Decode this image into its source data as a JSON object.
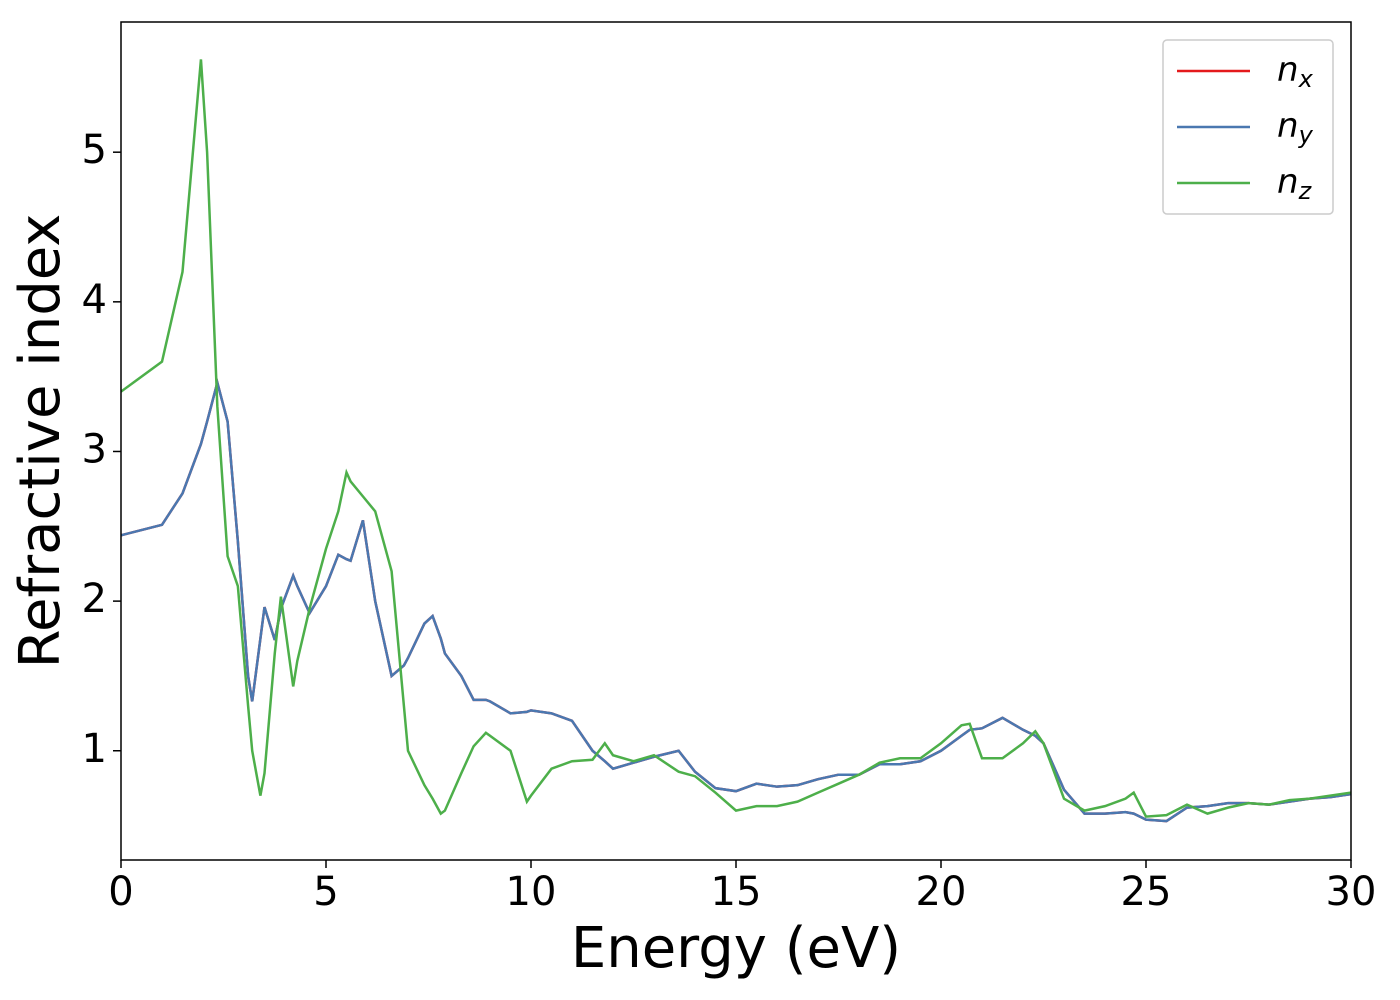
{
  "chart_data": {
    "type": "line",
    "xlabel": "Energy (eV)",
    "ylabel": "Refractive index",
    "x": [
      0,
      1,
      1.5,
      1.95,
      2.1,
      2.35,
      2.6,
      2.85,
      3.1,
      3.2,
      3.4,
      3.5,
      3.75,
      3.9,
      4.2,
      4.3,
      4.6,
      5.0,
      5.3,
      5.5,
      5.6,
      5.9,
      6.2,
      6.6,
      6.9,
      7.0,
      7.4,
      7.6,
      7.8,
      7.9,
      8.3,
      8.6,
      8.9,
      9.0,
      9.5,
      9.9,
      10.0,
      10.5,
      11.0,
      11.5,
      11.8,
      12.0,
      12.5,
      13.0,
      13.6,
      14.0,
      14.5,
      15.0,
      15.5,
      16.0,
      16.5,
      17,
      17.5,
      18,
      18.5,
      19,
      19.5,
      20,
      20.5,
      20.7,
      21,
      21.5,
      22,
      22.3,
      22.5,
      23,
      23.5,
      24,
      24.5,
      24.7,
      25,
      25.5,
      26,
      26.5,
      27,
      27.5,
      28,
      28.5,
      29,
      29.5,
      30
    ],
    "series": [
      {
        "name": "n_x",
        "color": "#e41a1c",
        "values": [
          2.44,
          2.51,
          2.72,
          3.05,
          3.2,
          3.46,
          3.2,
          2.4,
          1.5,
          1.33,
          1.75,
          1.96,
          1.74,
          1.95,
          2.17,
          2.1,
          1.92,
          2.1,
          2.31,
          2.28,
          2.27,
          2.54,
          2.0,
          1.5,
          1.57,
          1.62,
          1.85,
          1.9,
          1.75,
          1.65,
          1.5,
          1.34,
          1.34,
          1.33,
          1.25,
          1.26,
          1.27,
          1.25,
          1.2,
          1.0,
          0.93,
          0.88,
          0.92,
          0.96,
          1.0,
          0.86,
          0.75,
          0.73,
          0.78,
          0.76,
          0.77,
          0.81,
          0.84,
          0.84,
          0.91,
          0.91,
          0.93,
          1.0,
          1.1,
          1.14,
          1.15,
          1.22,
          1.14,
          1.1,
          1.05,
          0.74,
          0.58,
          0.58,
          0.59,
          0.58,
          0.54,
          0.53,
          0.62,
          0.63,
          0.65,
          0.65,
          0.64,
          0.66,
          0.68,
          0.69,
          0.71
        ]
      },
      {
        "name": "n_y",
        "color": "#4a78b0",
        "values": [
          2.44,
          2.51,
          2.72,
          3.05,
          3.2,
          3.46,
          3.2,
          2.4,
          1.5,
          1.33,
          1.75,
          1.96,
          1.74,
          1.95,
          2.17,
          2.1,
          1.92,
          2.1,
          2.31,
          2.28,
          2.27,
          2.54,
          2.0,
          1.5,
          1.57,
          1.62,
          1.85,
          1.9,
          1.75,
          1.65,
          1.5,
          1.34,
          1.34,
          1.33,
          1.25,
          1.26,
          1.27,
          1.25,
          1.2,
          1.0,
          0.93,
          0.88,
          0.92,
          0.96,
          1.0,
          0.86,
          0.75,
          0.73,
          0.78,
          0.76,
          0.77,
          0.81,
          0.84,
          0.84,
          0.91,
          0.91,
          0.93,
          1.0,
          1.1,
          1.14,
          1.15,
          1.22,
          1.14,
          1.1,
          1.05,
          0.74,
          0.58,
          0.58,
          0.59,
          0.58,
          0.54,
          0.53,
          0.62,
          0.63,
          0.65,
          0.65,
          0.64,
          0.66,
          0.68,
          0.69,
          0.71
        ]
      },
      {
        "name": "n_z",
        "color": "#4daf4a",
        "values": [
          3.4,
          3.6,
          4.2,
          5.62,
          5.0,
          3.3,
          2.3,
          2.1,
          1.3,
          1.0,
          0.7,
          0.85,
          1.65,
          2.03,
          1.43,
          1.6,
          1.95,
          2.35,
          2.6,
          2.86,
          2.8,
          2.7,
          2.6,
          2.2,
          1.3,
          1.0,
          0.77,
          0.68,
          0.58,
          0.6,
          0.85,
          1.03,
          1.12,
          1.1,
          1.0,
          0.66,
          0.7,
          0.88,
          0.93,
          0.94,
          1.05,
          0.97,
          0.93,
          0.97,
          0.86,
          0.83,
          0.72,
          0.6,
          0.63,
          0.63,
          0.66,
          0.72,
          0.78,
          0.84,
          0.92,
          0.95,
          0.95,
          1.05,
          1.17,
          1.18,
          0.95,
          0.95,
          1.05,
          1.13,
          1.05,
          0.68,
          0.6,
          0.63,
          0.68,
          0.72,
          0.56,
          0.57,
          0.64,
          0.58,
          0.62,
          0.65,
          0.64,
          0.67,
          0.68,
          0.7,
          0.72
        ]
      }
    ],
    "xlim": [
      0,
      30
    ],
    "xticks": [
      0,
      5,
      10,
      15,
      20,
      25,
      30
    ],
    "ylim": [
      0.27,
      5.87
    ],
    "yticks": [
      1,
      2,
      3,
      4,
      5
    ],
    "legend": "upper right"
  }
}
